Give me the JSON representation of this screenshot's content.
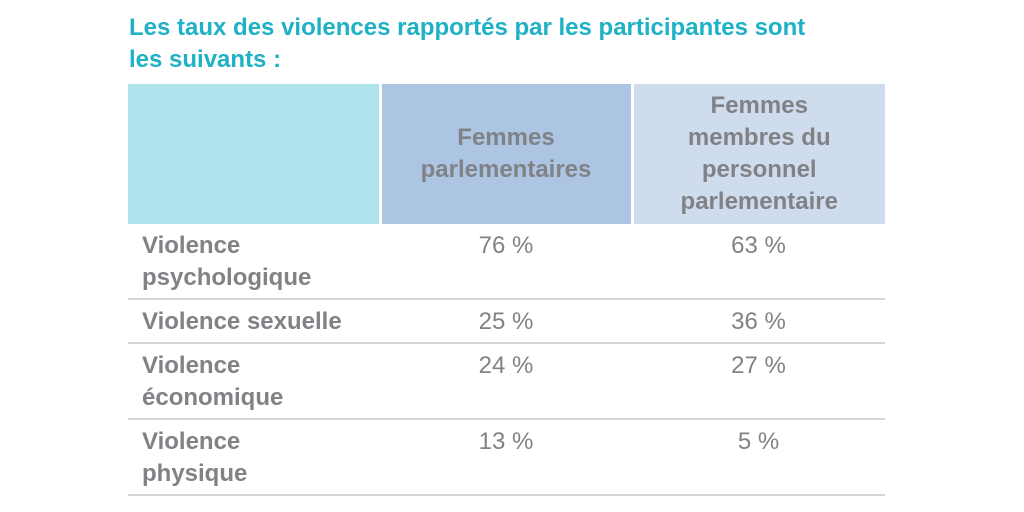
{
  "title": {
    "line1": "Les taux des violences rapportés par les participantes sont",
    "line2": "les suivants :"
  },
  "table": {
    "header": {
      "col1": "",
      "col2_lines": [
        "Femmes",
        "parlementaires"
      ],
      "col3_lines": [
        "Femmes",
        "membres du",
        "personnel",
        "parlementaire"
      ]
    },
    "rows": [
      {
        "label_lines": [
          "Violence",
          "psychologique"
        ],
        "mps": "76 %",
        "staff": "63 %"
      },
      {
        "label_lines": [
          "Violence sexuelle"
        ],
        "mps": "25 %",
        "staff": "36 %"
      },
      {
        "label_lines": [
          "Violence",
          "économique"
        ],
        "mps": "24 %",
        "staff": "27 %"
      },
      {
        "label_lines": [
          "Violence",
          "physique"
        ],
        "mps": "13 %",
        "staff": "5 %"
      }
    ]
  },
  "colors": {
    "title": "#1fb1c5",
    "header_col1": "#ade3ea",
    "header_col2": "#abc5e3",
    "header_col3": "#cfdcee",
    "text": "#808286",
    "row_divider": "#d3d4d6"
  }
}
